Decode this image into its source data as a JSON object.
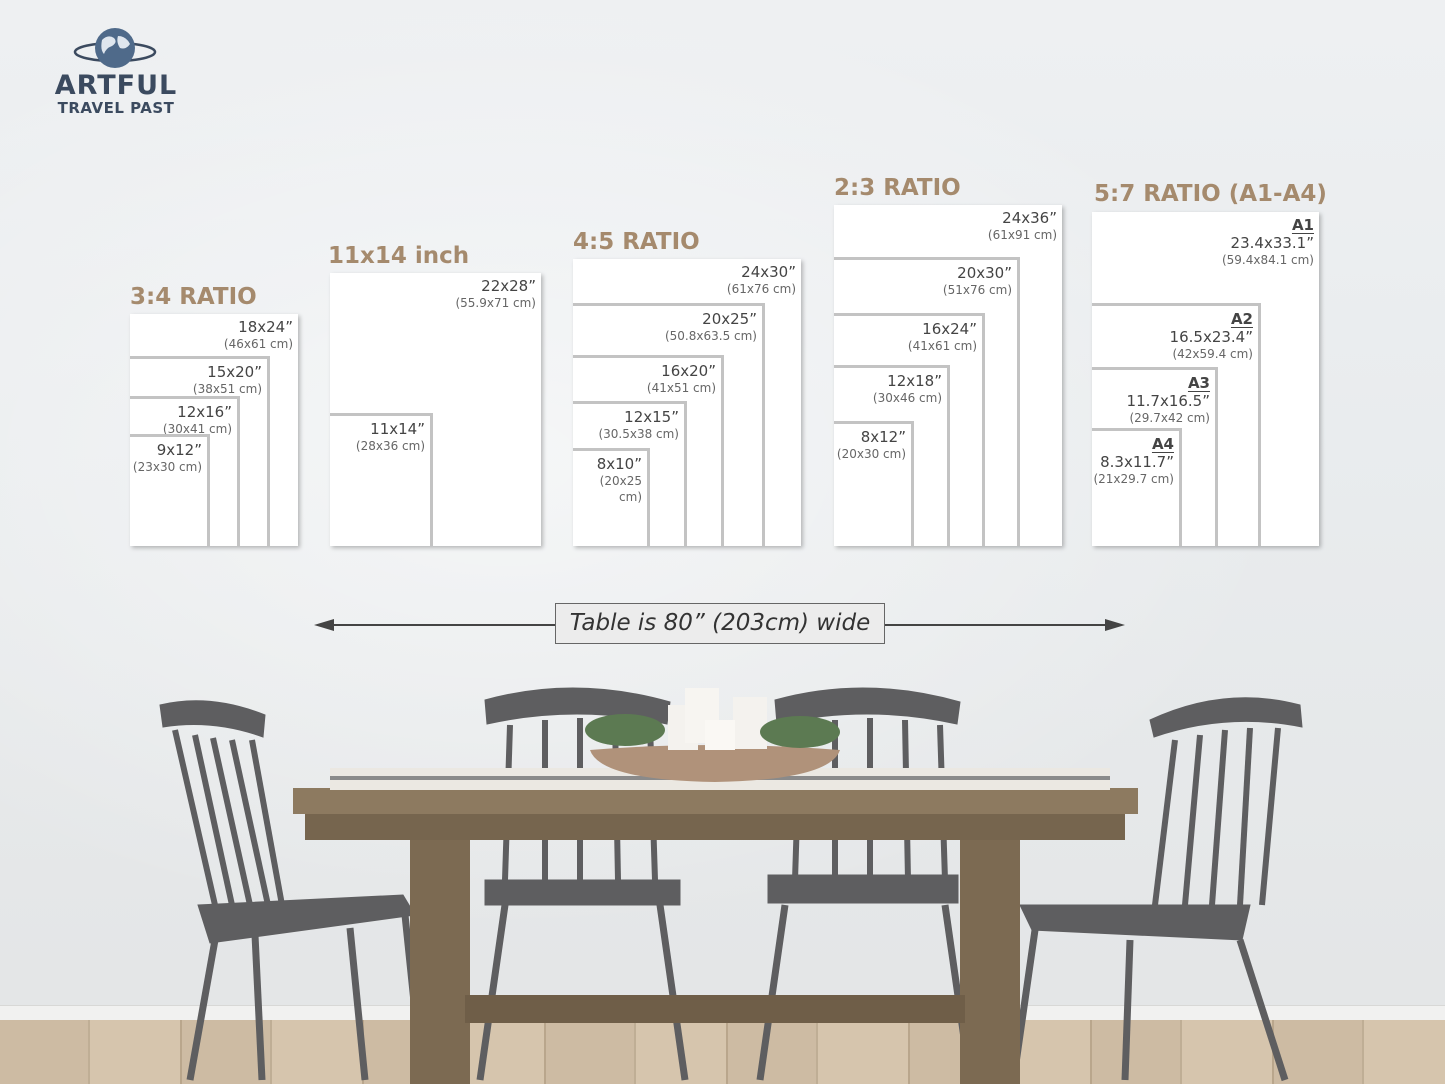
{
  "logo": {
    "line1": "ARTFUL",
    "line2": "TRAVEL PAST",
    "icon": "globe-icon",
    "color": "#3b4a5f"
  },
  "accent_color": "#a58a6d",
  "groups": [
    {
      "title": "3:4 RATIO",
      "sizes": [
        {
          "in": "18x24”",
          "cm": "(46x61 cm)"
        },
        {
          "in": "15x20”",
          "cm": "(38x51 cm)"
        },
        {
          "in": "12x16”",
          "cm": "(30x41 cm)"
        },
        {
          "in": "9x12”",
          "cm": "(23x30 cm)"
        }
      ]
    },
    {
      "title": "11x14 inch",
      "sizes": [
        {
          "in": "22x28”",
          "cm": "(55.9x71 cm)"
        },
        {
          "in": "11x14”",
          "cm": "(28x36 cm)"
        }
      ]
    },
    {
      "title": "4:5 RATIO",
      "sizes": [
        {
          "in": "24x30”",
          "cm": "(61x76 cm)"
        },
        {
          "in": "20x25”",
          "cm": "(50.8x63.5 cm)"
        },
        {
          "in": "16x20”",
          "cm": "(41x51 cm)"
        },
        {
          "in": "12x15”",
          "cm": "(30.5x38 cm)"
        },
        {
          "in": "8x10”",
          "cm": "(20x25 cm)"
        }
      ]
    },
    {
      "title": "2:3 RATIO",
      "sizes": [
        {
          "in": "24x36”",
          "cm": "(61x91 cm)"
        },
        {
          "in": "20x30”",
          "cm": "(51x76 cm)"
        },
        {
          "in": "16x24”",
          "cm": "(41x61 cm)"
        },
        {
          "in": "12x18”",
          "cm": "(30x46 cm)"
        },
        {
          "in": "8x12”",
          "cm": "(20x30 cm)"
        }
      ]
    },
    {
      "title": "5:7 RATIO (A1-A4)",
      "sizes": [
        {
          "code": "A1",
          "in": "23.4x33.1”",
          "cm": "(59.4x84.1 cm)"
        },
        {
          "code": "A2",
          "in": "16.5x23.4”",
          "cm": "(42x59.4 cm)"
        },
        {
          "code": "A3",
          "in": "11.7x16.5”",
          "cm": "(29.7x42 cm)"
        },
        {
          "code": "A4",
          "in": "8.3x11.7”",
          "cm": "(21x29.7 cm)"
        }
      ]
    }
  ],
  "table_note": "Table is 80” (203cm) wide"
}
